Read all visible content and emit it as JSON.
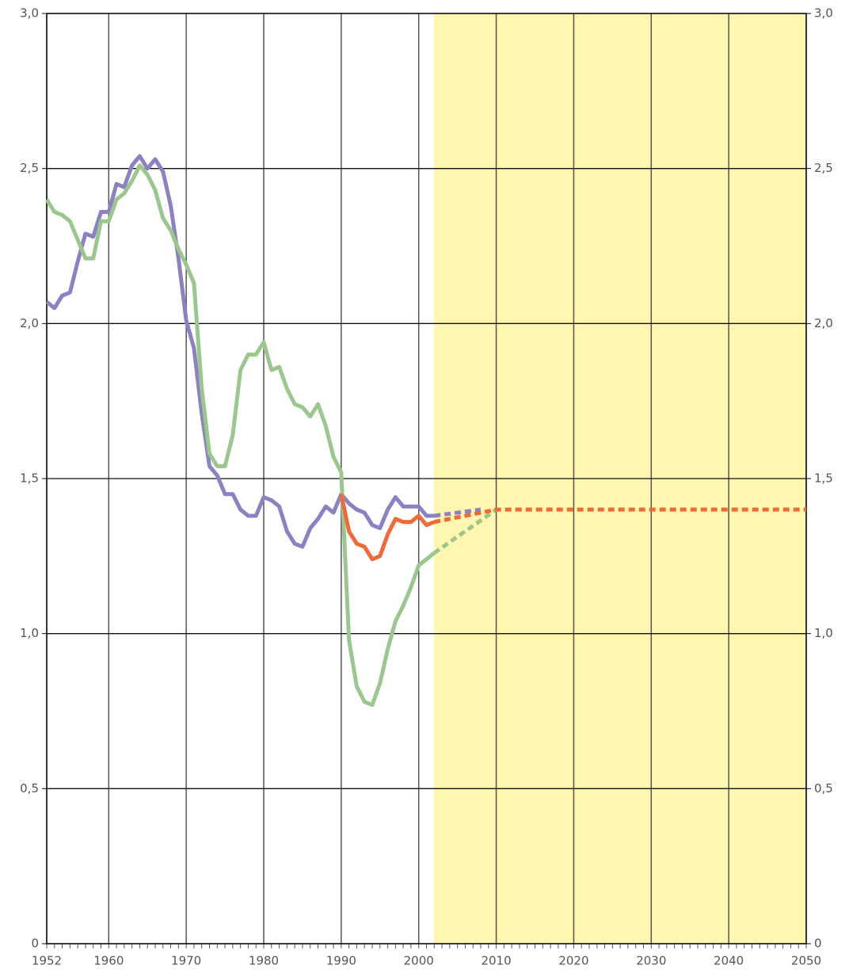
{
  "chart_data": {
    "type": "line",
    "xlim": [
      1952,
      2050
    ],
    "xticks": [
      1952,
      1960,
      1970,
      1980,
      1990,
      2000,
      2010,
      2020,
      2030,
      2040,
      2050
    ],
    "ylim": [
      0,
      3
    ],
    "yticks": [
      {
        "value": 0,
        "label": "0"
      },
      {
        "value": 0.5,
        "label": "0,5"
      },
      {
        "value": 1,
        "label": "1,0"
      },
      {
        "value": 1.5,
        "label": "1,5"
      },
      {
        "value": 2,
        "label": "2,0"
      },
      {
        "value": 2.5,
        "label": "2,5"
      },
      {
        "value": 3,
        "label": "3,0"
      }
    ],
    "grid": true,
    "shade_from": 2002,
    "shade_color": "#fff6b0",
    "series": [
      {
        "color": "#8c82c3",
        "style": "solid",
        "x": [
          1952,
          1953,
          1954,
          1955,
          1956,
          1957,
          1958,
          1959,
          1960,
          1961,
          1962,
          1963,
          1964,
          1965,
          1966,
          1967,
          1968,
          1969,
          1970,
          1971,
          1972,
          1973,
          1974,
          1975,
          1976,
          1977,
          1978,
          1979,
          1980,
          1981,
          1982,
          1983,
          1984,
          1985,
          1986,
          1987,
          1988,
          1989,
          1990,
          1991,
          1992,
          1993,
          1994,
          1995,
          1996,
          1997,
          1998,
          1999,
          2000,
          2001,
          2002
        ],
        "values": [
          2.07,
          2.05,
          2.09,
          2.1,
          2.2,
          2.29,
          2.28,
          2.36,
          2.36,
          2.45,
          2.44,
          2.51,
          2.54,
          2.5,
          2.53,
          2.49,
          2.38,
          2.21,
          2.01,
          1.92,
          1.71,
          1.54,
          1.51,
          1.45,
          1.45,
          1.4,
          1.38,
          1.38,
          1.44,
          1.43,
          1.41,
          1.33,
          1.29,
          1.28,
          1.34,
          1.37,
          1.41,
          1.39,
          1.45,
          1.42,
          1.4,
          1.39,
          1.35,
          1.34,
          1.4,
          1.44,
          1.41,
          1.41,
          1.41,
          1.38,
          1.38
        ]
      },
      {
        "color": "#9bc78d",
        "style": "solid",
        "x": [
          1952,
          1953,
          1954,
          1955,
          1956,
          1957,
          1958,
          1959,
          1960,
          1961,
          1962,
          1963,
          1964,
          1965,
          1966,
          1967,
          1968,
          1969,
          1970,
          1971,
          1972,
          1973,
          1974,
          1975,
          1976,
          1977,
          1978,
          1979,
          1980,
          1981,
          1982,
          1983,
          1984,
          1985,
          1986,
          1987,
          1988,
          1989,
          1990,
          1991,
          1992,
          1993,
          1994,
          1995,
          1996,
          1997,
          1998,
          1999,
          2000,
          2001,
          2002
        ],
        "values": [
          2.4,
          2.36,
          2.35,
          2.33,
          2.27,
          2.21,
          2.21,
          2.33,
          2.33,
          2.4,
          2.42,
          2.46,
          2.51,
          2.48,
          2.43,
          2.34,
          2.3,
          2.24,
          2.19,
          2.13,
          1.79,
          1.58,
          1.54,
          1.54,
          1.64,
          1.85,
          1.9,
          1.9,
          1.94,
          1.85,
          1.86,
          1.79,
          1.74,
          1.73,
          1.7,
          1.74,
          1.67,
          1.57,
          1.52,
          0.98,
          0.83,
          0.78,
          0.77,
          0.84,
          0.95,
          1.04,
          1.09,
          1.15,
          1.22,
          1.24,
          1.26
        ]
      },
      {
        "color": "#ee6a36",
        "style": "solid",
        "x": [
          1990,
          1991,
          1992,
          1993,
          1994,
          1995,
          1996,
          1997,
          1998,
          1999,
          2000,
          2001,
          2002
        ],
        "values": [
          1.45,
          1.33,
          1.29,
          1.28,
          1.24,
          1.25,
          1.32,
          1.37,
          1.36,
          1.36,
          1.38,
          1.35,
          1.36
        ]
      },
      {
        "color": "#8c82c3",
        "style": "dashed",
        "x": [
          2002,
          2008
        ],
        "values": [
          1.38,
          1.4
        ]
      },
      {
        "color": "#9bc78d",
        "style": "dashed",
        "x": [
          2002,
          2010
        ],
        "values": [
          1.26,
          1.4
        ]
      },
      {
        "color": "#ee6a36",
        "style": "dashed",
        "x": [
          2002,
          2010,
          2050
        ],
        "values": [
          1.36,
          1.4,
          1.4
        ]
      }
    ]
  }
}
